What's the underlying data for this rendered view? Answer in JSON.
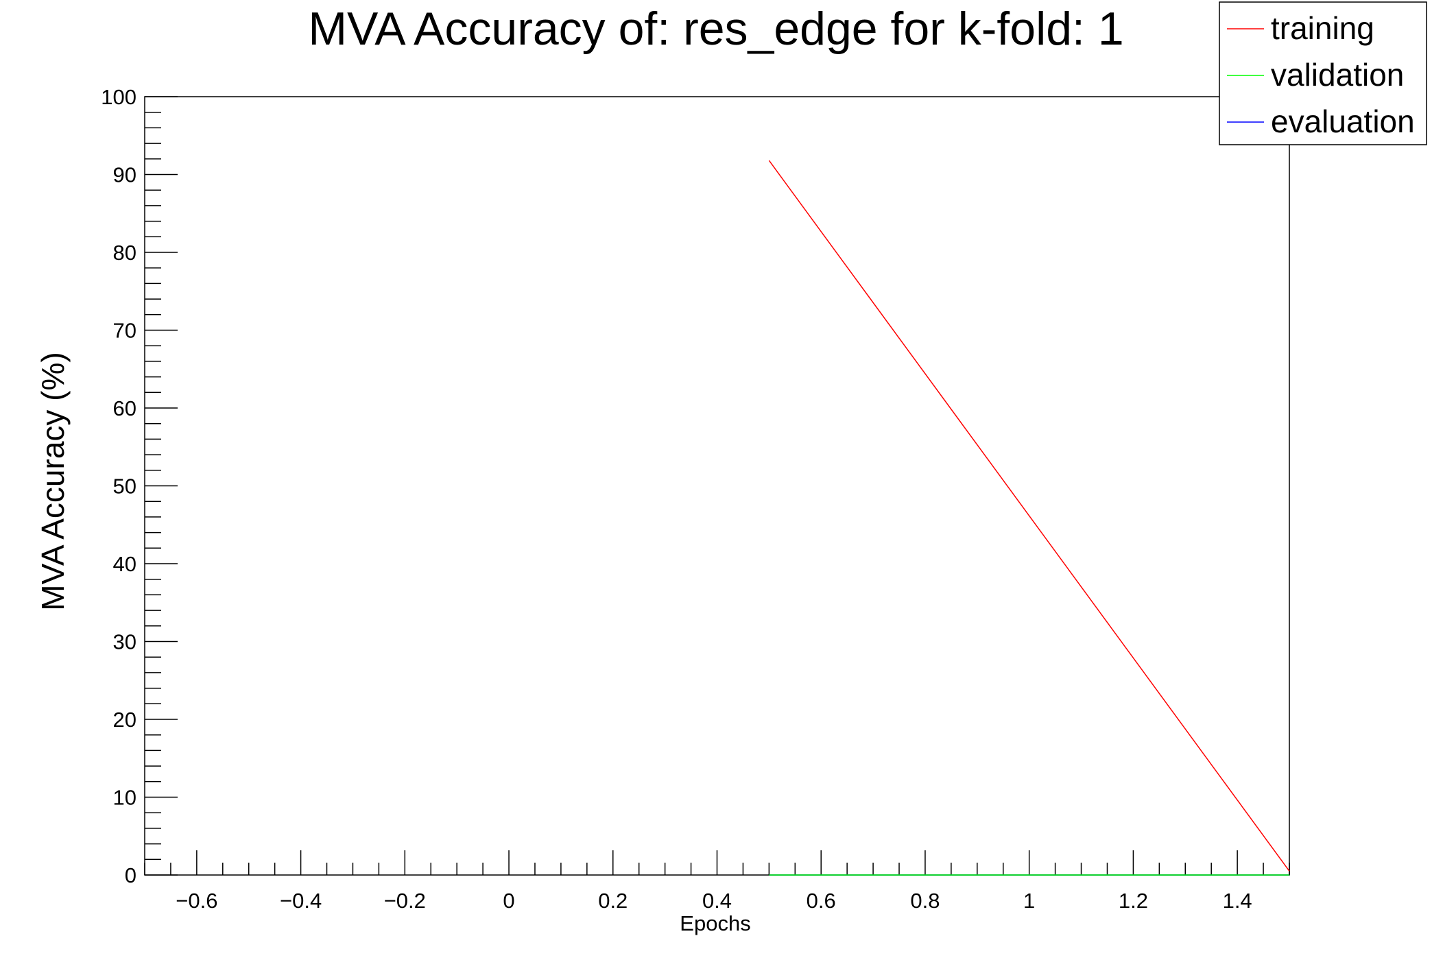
{
  "chart_data": {
    "type": "line",
    "title": "MVA Accuracy of: res_edge for k-fold: 1",
    "xlabel": "Epochs",
    "ylabel": "MVA Accuracy (%)",
    "xlim": [
      -0.7,
      1.5
    ],
    "ylim": [
      0,
      100
    ],
    "x_ticks": [
      -0.6,
      -0.4,
      -0.2,
      0,
      0.2,
      0.4,
      0.6,
      0.8,
      1,
      1.2,
      1.4
    ],
    "x_tick_labels": [
      "−0.6",
      "−0.4",
      "−0.2",
      "0",
      "0.2",
      "0.4",
      "0.6",
      "0.8",
      "1",
      "1.2",
      "1.4"
    ],
    "y_ticks": [
      0,
      10,
      20,
      30,
      40,
      50,
      60,
      70,
      80,
      90,
      100
    ],
    "y_tick_labels": [
      "0",
      "10",
      "20",
      "30",
      "40",
      "50",
      "60",
      "70",
      "80",
      "90",
      "100"
    ],
    "grid": false,
    "legend_position": "top-right",
    "series": [
      {
        "name": "training",
        "color": "#ff0000",
        "x": [
          0.5,
          1.5
        ],
        "y": [
          91.8,
          0.5
        ]
      },
      {
        "name": "validation",
        "color": "#00ff00",
        "x": [
          0.5,
          1.5
        ],
        "y": [
          0,
          0
        ]
      },
      {
        "name": "evaluation",
        "color": "#0000ff",
        "x": [
          0.5,
          1.5
        ],
        "y": [
          0,
          0
        ]
      }
    ]
  }
}
